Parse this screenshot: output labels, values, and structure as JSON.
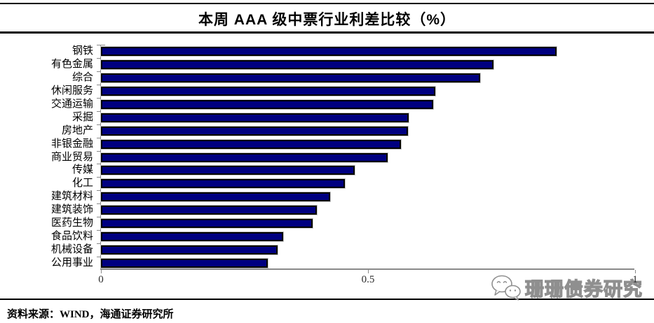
{
  "chart": {
    "title": "本周 AAA 级中票行业利差比较（%）"
  },
  "chart_data": {
    "type": "bar",
    "orientation": "horizontal",
    "title": "本周 AAA 级中票行业利差比较（%）",
    "categories": [
      "钢铁",
      "有色金属",
      "综合",
      "休闲服务",
      "交通运输",
      "采掘",
      "房地产",
      "非银金融",
      "商业贸易",
      "传媒",
      "化工",
      "建筑材料",
      "建筑装饰",
      "医药生物",
      "食品饮料",
      "机械设备",
      "公用事业"
    ],
    "values": [
      0.854,
      0.736,
      0.711,
      0.627,
      0.623,
      0.577,
      0.575,
      0.562,
      0.537,
      0.476,
      0.457,
      0.43,
      0.405,
      0.397,
      0.341,
      0.331,
      0.313
    ],
    "xlabel": "",
    "ylabel": "",
    "xlim": [
      0,
      1
    ],
    "xticks": [
      0,
      0.5,
      1
    ],
    "xtick_labels": [
      "0",
      "0.5",
      "1"
    ],
    "bar_color": "#000080",
    "bar_border_color": "#000000",
    "grid": false,
    "legend": false
  },
  "footer": {
    "source": "资料来源：WIND，海通证券研究所"
  },
  "watermark": {
    "text": "珊珊债券研究",
    "icon": "wechat-icon"
  }
}
